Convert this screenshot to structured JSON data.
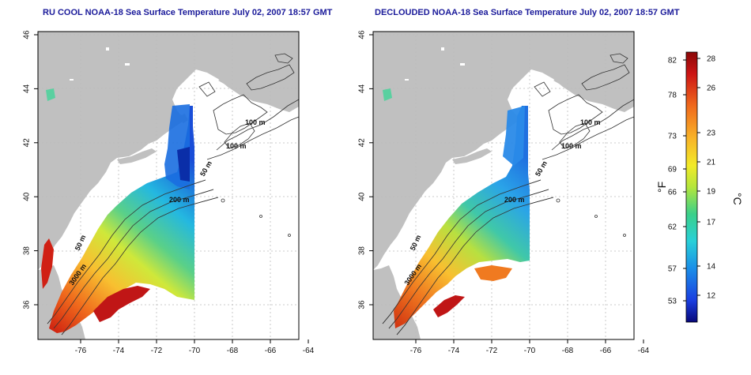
{
  "panels": [
    {
      "title": "RU COOL NOAA-18 Sea Surface Temperature July 02, 2007 18:57 GMT",
      "contour_labels": [
        "100 m",
        "100 m",
        "50 m",
        "200 m",
        "50 m",
        "3000 m"
      ]
    },
    {
      "title": "DECLOUDED NOAA-18 Sea Surface Temperature July 02, 2007 18:57 GMT",
      "contour_labels": [
        "100 m",
        "100 m",
        "50 m",
        "200 m",
        "50 m",
        "3000 m"
      ]
    }
  ],
  "axes": {
    "x_ticks": [
      "-76",
      "-74",
      "-72",
      "-70",
      "-68",
      "-66",
      "-64"
    ],
    "y_ticks": [
      "36",
      "38",
      "40",
      "42",
      "44",
      "46"
    ]
  },
  "colorbar": {
    "f_unit": "°F",
    "c_unit": "°C",
    "f_ticks": [
      "82",
      "78",
      "73",
      "69",
      "66",
      "62",
      "57",
      "53"
    ],
    "c_ticks": [
      "28",
      "26",
      "23",
      "21",
      "19",
      "17",
      "14",
      "12"
    ],
    "colors": [
      "#08087a",
      "#1a3ee0",
      "#1a8fe8",
      "#28d0d8",
      "#3ad08a",
      "#b4e63c",
      "#f2ea28",
      "#f8b428",
      "#f06a1c",
      "#cc1414",
      "#8a0808"
    ]
  },
  "colors": {
    "land": "#c0c0c0",
    "contour": "#333333",
    "grid": "#bbbbbb",
    "title": "#1a1a9a"
  }
}
